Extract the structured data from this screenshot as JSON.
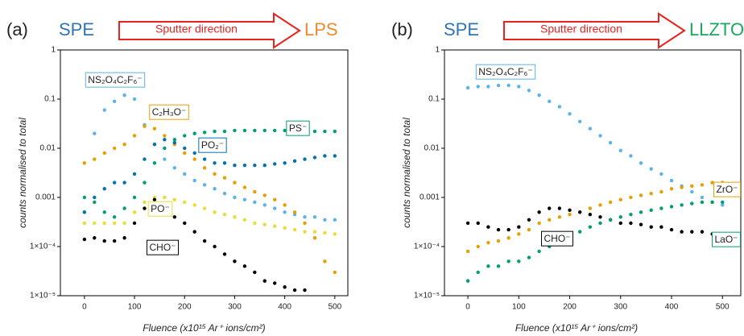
{
  "chart_data": [
    {
      "type": "scatter",
      "panel_label": "(a)",
      "source": "SPE",
      "arrow": "Sputter direction",
      "target": "LPS",
      "x_label": "Fluence (x10¹⁵ Ar⁺ ions/cm²)",
      "y_label": "counts normalised to total",
      "log_y": true,
      "xlim": [
        -48,
        526
      ],
      "ylim": [
        1e-05,
        1
      ],
      "xticks": [
        0,
        100,
        200,
        300,
        400,
        500
      ],
      "yticks": [
        {
          "value": 1e-05,
          "label": "1×10⁻⁵"
        },
        {
          "value": 0.0001,
          "label": "1×10⁻⁴"
        },
        0.001,
        0.01,
        0.1,
        1
      ],
      "x": [
        0,
        20,
        40,
        60,
        80,
        100,
        120,
        140,
        160,
        180,
        200,
        220,
        240,
        260,
        280,
        300,
        320,
        340,
        360,
        380,
        400,
        420,
        440,
        460,
        480,
        500
      ],
      "series": [
        {
          "name": "NS₂O₄C₂F₆⁻",
          "color": "#5ab4e6",
          "values": [
            0.0005,
            0.02,
            0.06,
            0.09,
            0.12,
            0.1,
            0.03,
            0.012,
            0.006,
            0.004,
            0.003,
            0.0022,
            0.0018,
            0.0015,
            0.0012,
            0.001,
            0.0009,
            0.0008,
            0.0007,
            0.0006,
            0.0005,
            0.00045,
            0.0004,
            0.0004,
            0.00035,
            0.00035
          ]
        },
        {
          "name": "C₂H₃O⁻",
          "color": "#e69f00",
          "values": [
            0.005,
            0.006,
            0.008,
            0.01,
            0.012,
            0.018,
            0.028,
            0.025,
            0.018,
            0.012,
            0.008,
            0.006,
            0.004,
            0.003,
            0.0025,
            0.002,
            0.0016,
            0.0013,
            0.0011,
            0.0009,
            0.0007,
            0.0005,
            0.0003,
            0.00015,
            5e-05,
            3e-05
          ]
        },
        {
          "name": "PS⁻",
          "color": "#009e73",
          "values": [
            0.001,
            0.0008,
            0.0005,
            0.0004,
            0.0006,
            0.001,
            0.002,
            0.005,
            0.01,
            0.015,
            0.018,
            0.02,
            0.021,
            0.022,
            0.022,
            0.023,
            0.023,
            0.023,
            0.023,
            0.023,
            0.023,
            0.022,
            0.022,
            0.022,
            0.022,
            0.022
          ]
        },
        {
          "name": "PO₂⁻",
          "color": "#0072b2",
          "values": [
            0.0005,
            0.001,
            0.0015,
            0.002,
            0.002,
            0.003,
            0.006,
            0.012,
            0.015,
            0.013,
            0.01,
            0.008,
            0.006,
            0.005,
            0.005,
            0.0045,
            0.0045,
            0.0045,
            0.0045,
            0.0048,
            0.005,
            0.0055,
            0.006,
            0.0065,
            0.007,
            0.007
          ]
        },
        {
          "name": "PO⁻",
          "color": "#e8dc3c",
          "values": [
            0.0003,
            0.0003,
            0.0003,
            0.0003,
            0.0003,
            0.0005,
            0.0008,
            0.001,
            0.001,
            0.0009,
            0.0008,
            0.0007,
            0.0006,
            0.0005,
            0.00045,
            0.0004,
            0.00035,
            0.0003,
            0.00028,
            0.00026,
            0.00024,
            0.00022,
            0.0002,
            0.0002,
            0.00019,
            0.00018
          ]
        },
        {
          "name": "CHO⁻",
          "color": "#000000",
          "values": [
            0.00014,
            0.00015,
            0.00013,
            0.00013,
            0.00015,
            0.0003,
            0.0006,
            0.0009,
            0.0007,
            0.0004,
            0.0003,
            0.0002,
            0.00013,
            0.0001,
            7e-05,
            5e-05,
            4e-05,
            3e-05,
            2e-05,
            1.8e-05,
            1.5e-05,
            1.3e-05,
            1.3e-05,
            null,
            null,
            null
          ]
        }
      ]
    },
    {
      "type": "scatter",
      "panel_label": "(b)",
      "source": "SPE",
      "arrow": "Sputter direction",
      "target": "LLZTO",
      "x_label": "Fluence (x10¹⁵ Ar⁺ ions/cm²)",
      "y_label": "counts normalised to total",
      "log_y": true,
      "xlim": [
        -46,
        536
      ],
      "ylim": [
        1e-05,
        1
      ],
      "xticks": [
        0,
        100,
        200,
        300,
        400,
        500
      ],
      "yticks": [
        {
          "value": 1e-05,
          "label": "1×10⁻⁵"
        },
        {
          "value": 0.0001,
          "label": "1×10⁻⁴"
        },
        0.001,
        0.01,
        0.1,
        1
      ],
      "x": [
        0,
        20,
        40,
        60,
        80,
        100,
        120,
        140,
        160,
        180,
        200,
        220,
        240,
        260,
        280,
        300,
        320,
        340,
        360,
        380,
        400,
        420,
        440,
        460,
        480,
        500
      ],
      "series": [
        {
          "name": "NS₂O₄C₂F₆⁻",
          "color": "#5ab4e6",
          "values": [
            0.17,
            0.18,
            0.18,
            0.19,
            0.19,
            0.18,
            0.15,
            0.12,
            0.09,
            0.07,
            0.05,
            0.035,
            0.025,
            0.018,
            0.013,
            0.009,
            0.007,
            0.005,
            0.0038,
            0.003,
            0.0022,
            0.0017,
            0.0013,
            0.001,
            0.0008,
            0.0007
          ]
        },
        {
          "name": "ZrO⁻",
          "color": "#e69f00",
          "values": [
            8e-05,
            0.0001,
            0.00012,
            0.00013,
            0.00015,
            0.00018,
            0.00022,
            0.0003,
            0.00035,
            0.0004,
            0.00045,
            0.0005,
            0.0006,
            0.0007,
            0.0008,
            0.0009,
            0.001,
            0.0011,
            0.0012,
            0.0013,
            0.0015,
            0.0016,
            0.0017,
            0.0018,
            0.002,
            0.002
          ]
        },
        {
          "name": "CHO⁻",
          "color": "#000000",
          "values": [
            0.0003,
            0.0003,
            0.00025,
            0.00022,
            0.00022,
            0.00025,
            0.00035,
            0.0005,
            0.0006,
            0.0006,
            0.00055,
            0.0005,
            0.00045,
            0.0004,
            0.00035,
            0.0003,
            0.0003,
            0.00028,
            0.00025,
            0.00025,
            0.00022,
            0.0002,
            0.0002,
            0.0002,
            0.00018,
            0.00018
          ]
        },
        {
          "name": "LaO⁻",
          "color": "#009e73",
          "values": [
            2e-05,
            3e-05,
            4e-05,
            4e-05,
            5e-05,
            5e-05,
            6e-05,
            8e-05,
            0.0001,
            0.00013,
            0.00016,
            0.0002,
            0.00025,
            0.0003,
            0.00035,
            0.0004,
            0.00045,
            0.0005,
            0.00055,
            0.0006,
            0.00065,
            0.0007,
            0.00075,
            0.0008,
            0.0008,
            0.0008
          ]
        }
      ]
    }
  ]
}
